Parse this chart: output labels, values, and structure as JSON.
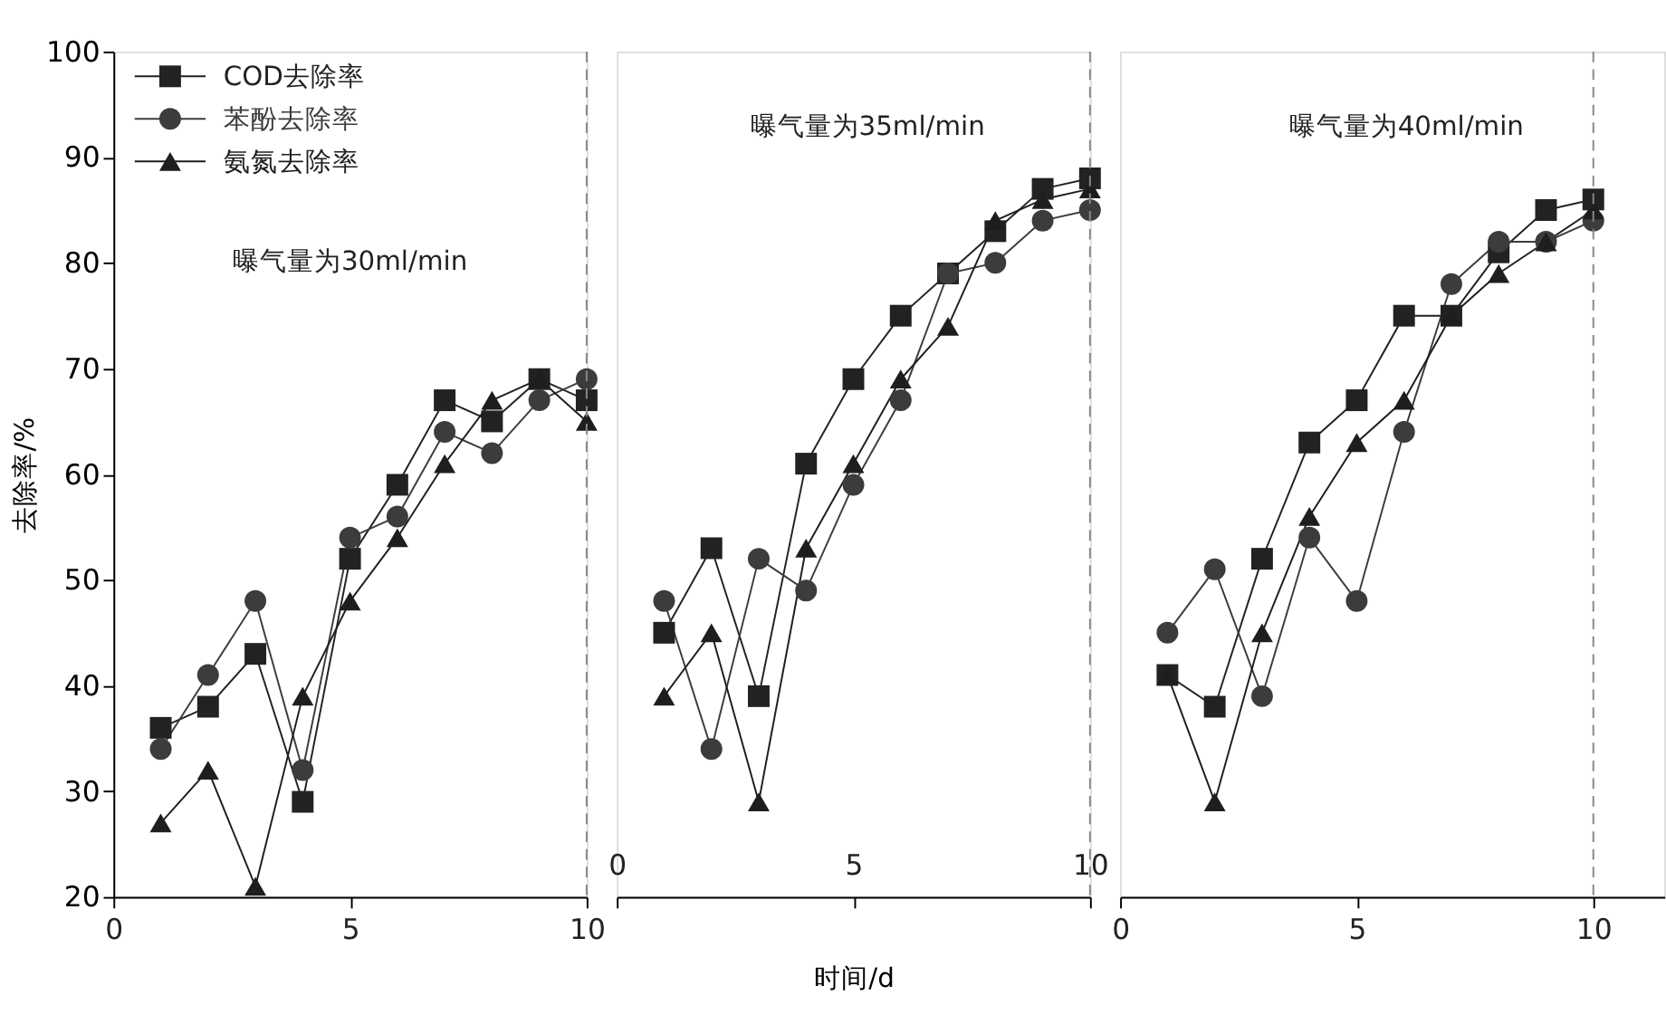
{
  "chart_data": [
    {
      "type": "line",
      "ylabel": "去除率/%",
      "x": [
        1,
        2,
        3,
        4,
        5,
        6,
        7,
        8,
        9,
        10
      ],
      "series": [
        {
          "name": "COD去除率",
          "color": "#222222",
          "marker": "square",
          "values": [
            36,
            38,
            43,
            29,
            52,
            59,
            67,
            65,
            69,
            67
          ]
        },
        {
          "name": "苯酚去除率",
          "color": "#3c3c3c",
          "marker": "circle",
          "values": [
            34,
            41,
            48,
            32,
            54,
            56,
            64,
            62,
            67,
            69
          ]
        },
        {
          "name": "氨氮去除率",
          "color": "#1e1e1e",
          "marker": "triangle",
          "values": [
            27,
            32,
            21,
            39,
            48,
            54,
            61,
            67,
            69,
            65
          ]
        }
      ],
      "xlim": [
        0,
        10
      ],
      "xticks": [
        0,
        5,
        10
      ],
      "ylim": [
        20,
        100
      ],
      "yticks": [
        20,
        30,
        40,
        50,
        60,
        70,
        80,
        90,
        100
      ],
      "ref_lines": [
        {
          "axis": "x",
          "value": 10,
          "color": "#888888",
          "line_style": "dashed"
        }
      ],
      "annotations": [
        "曝气量为30ml/min"
      ],
      "legend": "top left",
      "grid": false,
      "line_style": "solid"
    },
    {
      "type": "line",
      "xlabel": "时间/d",
      "x": [
        1,
        2,
        3,
        4,
        5,
        6,
        7,
        8,
        9,
        10
      ],
      "series": [
        {
          "color": "#222222",
          "marker": "square",
          "values": [
            45,
            53,
            39,
            61,
            69,
            75,
            79,
            83,
            87,
            88
          ]
        },
        {
          "color": "#3c3c3c",
          "marker": "circle",
          "values": [
            48,
            34,
            52,
            49,
            59,
            67,
            79,
            80,
            84,
            85
          ]
        },
        {
          "color": "#1e1e1e",
          "marker": "triangle",
          "values": [
            39,
            45,
            29,
            53,
            61,
            69,
            74,
            84,
            86,
            87
          ]
        }
      ],
      "xlim": [
        0,
        10
      ],
      "xticks": [
        0,
        5,
        10
      ],
      "ylim": [
        20,
        100
      ],
      "tick_labels": "x",
      "ref_lines": [
        {
          "axis": "x",
          "value": 10,
          "color": "#888888",
          "line_style": "dashed"
        }
      ],
      "annotations": [
        "曝气量为35ml/min"
      ],
      "grid": false,
      "line_style": "solid"
    },
    {
      "type": "line",
      "x": [
        1,
        2,
        3,
        4,
        5,
        6,
        7,
        8,
        9,
        10
      ],
      "series": [
        {
          "color": "#222222",
          "marker": "square",
          "values": [
            41,
            38,
            52,
            63,
            67,
            75,
            75,
            81,
            85,
            86
          ]
        },
        {
          "color": "#3c3c3c",
          "marker": "circle",
          "values": [
            45,
            51,
            39,
            54,
            48,
            64,
            78,
            82,
            82,
            84
          ]
        },
        {
          "color": "#1e1e1e",
          "marker": "triangle",
          "values": [
            41,
            29,
            45,
            56,
            63,
            67,
            75,
            79,
            82,
            85
          ]
        }
      ],
      "xlim": [
        0,
        11.5
      ],
      "xticks": [
        0,
        5,
        10
      ],
      "ylim": [
        20,
        100
      ],
      "tick_labels": "x",
      "ref_lines": [
        {
          "axis": "x",
          "value": 10,
          "color": "#888888",
          "line_style": "dashed"
        }
      ],
      "annotations": [
        "曝气量为40ml/min"
      ],
      "grid": false,
      "line_style": "solid"
    }
  ]
}
